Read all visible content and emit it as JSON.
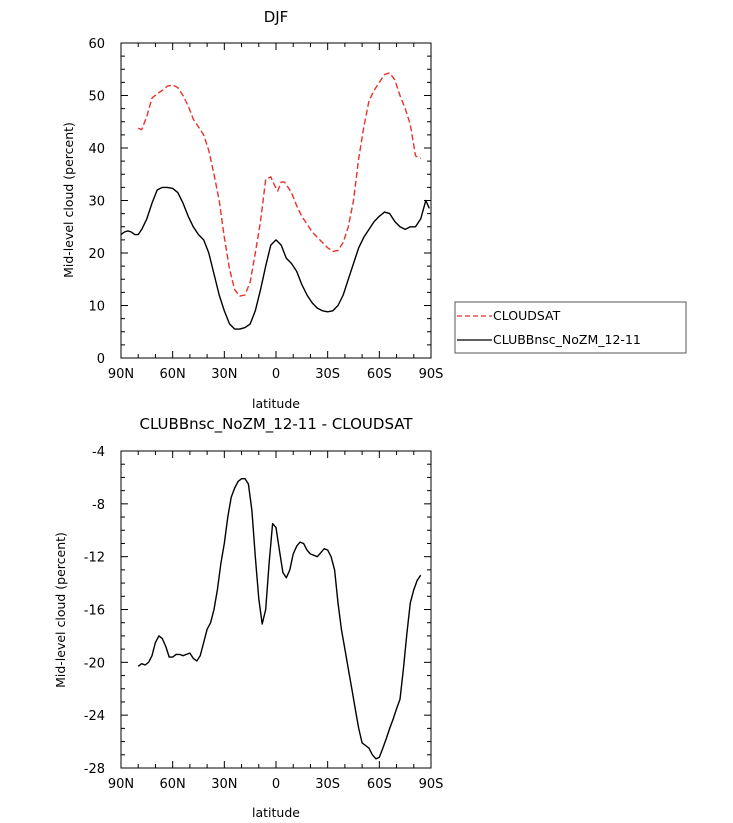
{
  "chart_data": [
    {
      "type": "line",
      "title": "DJF",
      "xlabel": "latitude",
      "ylabel": "Mid-level cloud (percent)",
      "xlim": [
        90,
        -90
      ],
      "ylim": [
        0,
        60
      ],
      "xticks": [
        90,
        60,
        30,
        0,
        -30,
        -60,
        -90
      ],
      "xtick_labels": [
        "90N",
        "60N",
        "30N",
        "0",
        "30S",
        "60S",
        "90S"
      ],
      "yticks": [
        0,
        10,
        20,
        30,
        40,
        50,
        60
      ],
      "ytick_labels": [
        "0",
        "10",
        "20",
        "30",
        "40",
        "50",
        "60"
      ],
      "grid": false,
      "legend_placement": "right",
      "series": [
        {
          "name": "CLOUDSAT",
          "color": "#e8312b",
          "dash": "dashed",
          "x": [
            80,
            78,
            75,
            72,
            69,
            66,
            63,
            60,
            57,
            54,
            51,
            48,
            45,
            42,
            39,
            36,
            33,
            30,
            27,
            24,
            21,
            18,
            15,
            12,
            9,
            6,
            3,
            1,
            -1,
            -3,
            -5,
            -7,
            -9,
            -12,
            -15,
            -18,
            -21,
            -24,
            -27,
            -30,
            -33,
            -36,
            -39,
            -42,
            -45,
            -48,
            -51,
            -54,
            -57,
            -60,
            -63,
            -66,
            -69,
            -72,
            -75,
            -78,
            -81,
            -84
          ],
          "values": [
            43.8,
            43.5,
            46,
            49.5,
            50.3,
            51,
            51.8,
            52,
            51.5,
            50,
            48,
            45.5,
            44,
            42.5,
            39.5,
            35,
            30,
            23,
            17,
            13,
            11.8,
            12,
            14.5,
            20,
            26,
            34,
            34.5,
            33,
            31.8,
            33.5,
            33.5,
            32.5,
            31.5,
            29,
            27,
            25.5,
            24,
            23,
            22,
            21,
            20.3,
            20.5,
            22,
            25,
            30,
            38,
            44,
            49,
            51,
            52.5,
            54,
            54.3,
            53,
            50,
            47.5,
            44.5,
            38.5,
            38
          ]
        },
        {
          "name": "CLUBBnsc_NoZM_12-11",
          "color": "#000000",
          "dash": "solid",
          "x": [
            90,
            88,
            86,
            84,
            82,
            80,
            78,
            75,
            72,
            69,
            66,
            63,
            60,
            57,
            54,
            51,
            48,
            45,
            42,
            39,
            36,
            33,
            30,
            27,
            24,
            21,
            18,
            15,
            12,
            9,
            6,
            3,
            0,
            -3,
            -6,
            -9,
            -12,
            -15,
            -18,
            -21,
            -24,
            -27,
            -30,
            -33,
            -36,
            -39,
            -42,
            -45,
            -48,
            -51,
            -54,
            -57,
            -60,
            -63,
            -66,
            -69,
            -72,
            -75,
            -78,
            -81,
            -84,
            -87,
            -89
          ],
          "values": [
            23.5,
            24,
            24.2,
            24,
            23.5,
            23.5,
            24.5,
            26.5,
            29.5,
            32,
            32.5,
            32.5,
            32.3,
            31.5,
            29.5,
            27,
            25,
            23.5,
            22.5,
            20,
            16,
            12,
            9,
            6.5,
            5.5,
            5.5,
            5.8,
            6.5,
            9,
            13,
            17.5,
            21.5,
            22.5,
            21.5,
            19,
            18,
            16.5,
            14,
            12,
            10.5,
            9.5,
            9,
            8.8,
            9,
            10,
            12,
            15,
            18,
            21,
            23,
            24.5,
            26,
            27,
            27.8,
            27.5,
            26,
            25,
            24.5,
            25,
            25,
            26.5,
            30,
            28.5
          ]
        }
      ]
    },
    {
      "type": "line",
      "title": "CLUBBnsc_NoZM_12-11 - CLOUDSAT",
      "xlabel": "latitude",
      "ylabel": "Mid-level cloud (percent)",
      "xlim": [
        90,
        -90
      ],
      "ylim": [
        -28,
        -4
      ],
      "xticks": [
        90,
        60,
        30,
        0,
        -30,
        -60,
        -90
      ],
      "xtick_labels": [
        "90N",
        "60N",
        "30N",
        "0",
        "30S",
        "60S",
        "90S"
      ],
      "yticks": [
        -28,
        -24,
        -20,
        -16,
        -12,
        -8,
        -4
      ],
      "ytick_labels": [
        "-28",
        "-24",
        "-20",
        "-16",
        "-12",
        "-8",
        "-4"
      ],
      "grid": false,
      "series": [
        {
          "color": "#000000",
          "dash": "solid",
          "x": [
            80,
            78,
            76,
            74,
            72,
            70,
            68,
            66,
            64,
            62,
            60,
            58,
            56,
            54,
            52,
            50,
            48,
            46,
            44,
            42,
            40,
            38,
            36,
            34,
            32,
            30,
            28,
            26,
            24,
            22,
            20,
            18,
            16,
            14,
            12,
            10,
            8,
            6,
            4,
            2,
            0,
            -2,
            -4,
            -6,
            -8,
            -10,
            -12,
            -14,
            -16,
            -18,
            -20,
            -22,
            -24,
            -26,
            -28,
            -30,
            -32,
            -34,
            -36,
            -38,
            -40,
            -42,
            -44,
            -46,
            -48,
            -50,
            -52,
            -54,
            -56,
            -58,
            -60,
            -62,
            -64,
            -66,
            -68,
            -70,
            -72,
            -74,
            -76,
            -78,
            -80,
            -82,
            -84
          ],
          "values": [
            -20.3,
            -20.1,
            -20.2,
            -20,
            -19.5,
            -18.5,
            -18,
            -18.2,
            -18.8,
            -19.6,
            -19.6,
            -19.4,
            -19.4,
            -19.5,
            -19.4,
            -19.3,
            -19.7,
            -19.9,
            -19.5,
            -18.5,
            -17.5,
            -17,
            -16,
            -14.5,
            -12.5,
            -11,
            -9,
            -7.5,
            -6.8,
            -6.3,
            -6.1,
            -6.1,
            -6.5,
            -8.5,
            -12,
            -15.2,
            -17.1,
            -16,
            -12.5,
            -9.5,
            -9.8,
            -11.5,
            -13.2,
            -13.6,
            -13,
            -11.8,
            -11.2,
            -10.9,
            -11,
            -11.5,
            -11.8,
            -11.9,
            -12,
            -11.7,
            -11.4,
            -11.5,
            -12,
            -13,
            -15.5,
            -17.5,
            -19,
            -20.5,
            -22,
            -23.5,
            -25,
            -26.1,
            -26.3,
            -26.5,
            -27,
            -27.3,
            -27.2,
            -26.5,
            -25.8,
            -25,
            -24.3,
            -23.5,
            -22.8,
            -20.5,
            -17.8,
            -15.5,
            -14.5,
            -13.8,
            -13.4
          ]
        }
      ]
    }
  ]
}
